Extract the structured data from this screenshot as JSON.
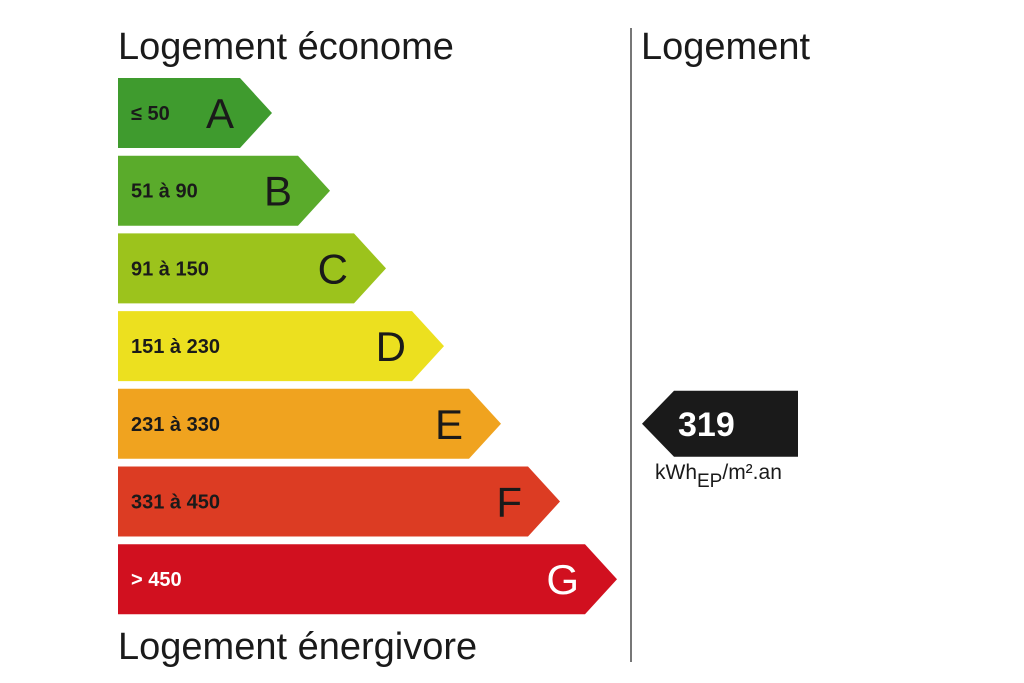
{
  "header": {
    "top_label": "Logement économe",
    "bottom_label": "Logement énergivore",
    "right_label": "Logement"
  },
  "chart_data": {
    "type": "bar",
    "categories": [
      "A",
      "B",
      "C",
      "D",
      "E",
      "F",
      "G"
    ],
    "ranges": [
      "≤ 50",
      "51 à 90",
      "91 à 150",
      "151 à 230",
      "231 à 330",
      "331 à 450",
      "> 450"
    ],
    "colors": [
      "#3f9b2e",
      "#5aab2b",
      "#9cc31c",
      "#ece01f",
      "#f0a31f",
      "#dc3c23",
      "#d1101f"
    ],
    "range_text_colors": [
      "#1a1a1a",
      "#1a1a1a",
      "#1a1a1a",
      "#1a1a1a",
      "#1a1a1a",
      "#1a1a1a",
      "#ffffff"
    ],
    "letter_colors": [
      "#1a1a1a",
      "#1a1a1a",
      "#1a1a1a",
      "#1a1a1a",
      "#1a1a1a",
      "#1a1a1a",
      "#ffffff"
    ],
    "indicator": {
      "value": "319",
      "unit_main": "kWh",
      "unit_sub": "EP",
      "unit_rest": "/m².an",
      "class": "E",
      "color": "#1a1a1a"
    }
  }
}
